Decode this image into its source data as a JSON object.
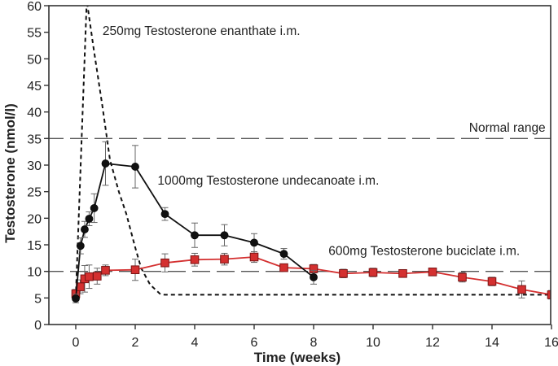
{
  "chart_data": {
    "type": "line",
    "title": "",
    "xlabel": "Time (weeks)",
    "ylabel": "Testosterone (nmol/l)",
    "xlim": [
      -1,
      16
    ],
    "ylim": [
      0,
      60
    ],
    "xticks": [
      0,
      2,
      4,
      6,
      8,
      10,
      12,
      14,
      16
    ],
    "yticks": [
      0,
      5,
      10,
      15,
      20,
      25,
      30,
      35,
      40,
      45,
      50,
      55,
      60
    ],
    "grid": false,
    "reference_lines": [
      {
        "name": "Normal range upper",
        "y": 35,
        "style": "dashed",
        "color": "#555555",
        "label": "Normal range"
      },
      {
        "name": "Normal range lower",
        "y": 10,
        "style": "dashed",
        "color": "#555555",
        "label": ""
      }
    ],
    "series": [
      {
        "name": "250mg Testosterone enanthate i.m.",
        "style": "dotted",
        "color": "#111111",
        "marker": "none",
        "x": [
          0,
          0.37,
          0.6,
          0.9,
          1.15,
          1.45,
          1.7,
          2.0,
          2.2,
          2.5,
          2.85,
          3.0,
          16
        ],
        "y": [
          5,
          61,
          52,
          41,
          31,
          25,
          20.8,
          14.5,
          10.6,
          7.5,
          5.7,
          5.6,
          5.6
        ]
      },
      {
        "name": "1000mg Testosterone undecanoate i.m.",
        "style": "solid",
        "color": "#111111",
        "marker": "circle",
        "x": [
          0,
          0.16,
          0.3,
          0.45,
          0.62,
          1,
          2,
          3,
          4,
          5,
          6,
          7,
          8
        ],
        "y": [
          4.9,
          14.8,
          17.9,
          19.9,
          21.9,
          30.3,
          29.7,
          20.8,
          16.8,
          16.8,
          15.4,
          13.3,
          8.9
        ],
        "err": [
          0.8,
          1.5,
          1.5,
          1.3,
          2.7,
          4.1,
          4.0,
          1.2,
          2.3,
          2.0,
          1.7,
          1.0,
          1.3
        ]
      },
      {
        "name": "600mg Testosterone buciclate i.m.",
        "style": "solid",
        "color": "#d43030",
        "marker": "square",
        "x": [
          0,
          0.15,
          0.3,
          0.45,
          0.72,
          1,
          2,
          3,
          4,
          5,
          6,
          7,
          8,
          9,
          10,
          11,
          12,
          13,
          14,
          15,
          16
        ],
        "y": [
          5.8,
          7.1,
          8.6,
          9.0,
          9.1,
          10.2,
          10.3,
          11.6,
          12.2,
          12.3,
          12.7,
          10.7,
          10.5,
          9.6,
          9.8,
          9.6,
          9.9,
          8.9,
          8.1,
          6.6,
          5.6
        ],
        "err": [
          0.8,
          1.3,
          2.5,
          2.2,
          1.5,
          1.0,
          2.0,
          1.7,
          1.2,
          1.1,
          1.0,
          0.6,
          0.8,
          0.8,
          0.8,
          0.7,
          0.7,
          0.9,
          0.8,
          1.6,
          0.8
        ]
      }
    ],
    "annotations": [
      {
        "text": "250mg Testosterone enanthate i.m.",
        "x": 0.9,
        "y": 54.5
      },
      {
        "text": "1000mg Testosterone undecanoate i.m.",
        "x": 2.75,
        "y": 26.3
      },
      {
        "text": "600mg Testosterone buciclate i.m.",
        "x": 8.5,
        "y": 13.1
      },
      {
        "text": "Normal range",
        "x": 15.8,
        "y": 36.3,
        "anchor": "end"
      }
    ]
  }
}
